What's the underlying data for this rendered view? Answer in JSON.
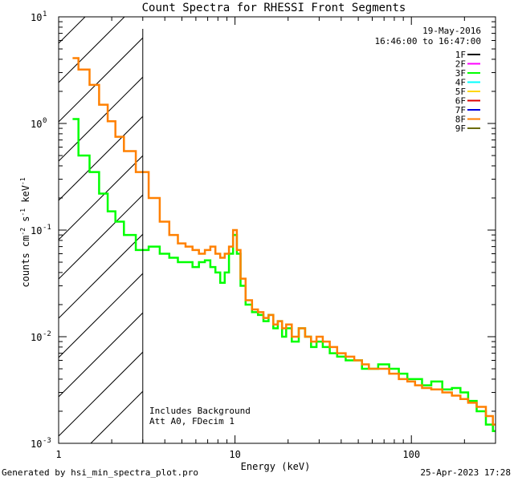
{
  "footer": {
    "left": "Generated by hsi_min_spectra_plot.pro",
    "right": "25-Apr-2023 17:28"
  },
  "chart_data": {
    "type": "line",
    "title": "Count Spectra for RHESSI Front Segments",
    "xlabel": "Energy (keV)",
    "ylabel": "counts cm-2 s-1 keV-1",
    "xscale": "log",
    "yscale": "log",
    "xlim": [
      1,
      300
    ],
    "ylim": [
      0.001,
      10
    ],
    "x_ticks": [
      {
        "value": 1,
        "label": "1"
      },
      {
        "value": 10,
        "label": "10"
      },
      {
        "value": 100,
        "label": "100"
      }
    ],
    "y_ticks": [
      {
        "value": 10,
        "label": "10",
        "exp": "1"
      },
      {
        "value": 1,
        "label": "10",
        "exp": "0"
      },
      {
        "value": 0.1,
        "label": "10",
        "exp": "-1"
      },
      {
        "value": 0.01,
        "label": "10",
        "exp": "-2"
      },
      {
        "value": 0.001,
        "label": "10",
        "exp": "-3"
      }
    ],
    "date": "19-May-2016",
    "time_range": "16:46:00 to 16:47:00",
    "annotations": [
      "Includes Background",
      "Att A0, FDecim 1"
    ],
    "cutoff_energy": 3,
    "legend": [
      {
        "label": "1F",
        "color": "#000000"
      },
      {
        "label": "2F",
        "color": "#ff00ff"
      },
      {
        "label": "3F",
        "color": "#00ff00"
      },
      {
        "label": "4F",
        "color": "#00ffff"
      },
      {
        "label": "5F",
        "color": "#ffd700"
      },
      {
        "label": "6F",
        "color": "#dd0000"
      },
      {
        "label": "7F",
        "color": "#0000dd"
      },
      {
        "label": "8F",
        "color": "#ff8000"
      },
      {
        "label": "9F",
        "color": "#6b6b00"
      }
    ],
    "series": [
      {
        "name": "3F",
        "color": "#00ff00",
        "x": [
          1.2,
          1.4,
          1.6,
          1.8,
          2.0,
          2.2,
          2.5,
          3.0,
          3.5,
          4.0,
          4.5,
          5.0,
          5.5,
          6.0,
          6.5,
          7.0,
          7.5,
          8.0,
          8.5,
          9.0,
          9.5,
          10.0,
          10.5,
          11.0,
          12.0,
          13.0,
          14.0,
          15.0,
          16.0,
          17.0,
          18.0,
          19.0,
          20.0,
          22.0,
          24.0,
          26.0,
          28.0,
          30.0,
          33.0,
          36.0,
          40.0,
          45.0,
          50.0,
          55.0,
          60.0,
          70.0,
          80.0,
          90.0,
          100.0,
          110.0,
          120.0,
          140.0,
          160.0,
          180.0,
          200.0,
          220.0,
          250.0,
          280.0,
          300.0
        ],
        "y": [
          1.1,
          0.5,
          0.35,
          0.22,
          0.15,
          0.12,
          0.09,
          0.065,
          0.07,
          0.06,
          0.055,
          0.05,
          0.05,
          0.045,
          0.05,
          0.052,
          0.045,
          0.04,
          0.032,
          0.04,
          0.06,
          0.09,
          0.06,
          0.03,
          0.02,
          0.017,
          0.016,
          0.014,
          0.016,
          0.012,
          0.014,
          0.01,
          0.012,
          0.009,
          0.012,
          0.01,
          0.008,
          0.009,
          0.008,
          0.007,
          0.0065,
          0.006,
          0.006,
          0.005,
          0.005,
          0.0055,
          0.005,
          0.0045,
          0.004,
          0.004,
          0.0035,
          0.0038,
          0.0032,
          0.0033,
          0.003,
          0.0025,
          0.002,
          0.0015,
          0.0013
        ]
      },
      {
        "name": "8F",
        "color": "#ff8000",
        "x": [
          1.2,
          1.4,
          1.6,
          1.8,
          2.0,
          2.2,
          2.5,
          3.0,
          3.5,
          4.0,
          4.5,
          5.0,
          5.5,
          6.0,
          6.5,
          7.0,
          7.5,
          8.0,
          8.5,
          9.0,
          9.5,
          10.0,
          10.5,
          11.0,
          12.0,
          13.0,
          14.0,
          15.0,
          16.0,
          17.0,
          18.0,
          19.0,
          20.0,
          22.0,
          24.0,
          26.0,
          28.0,
          30.0,
          33.0,
          36.0,
          40.0,
          45.0,
          50.0,
          55.0,
          60.0,
          70.0,
          80.0,
          90.0,
          100.0,
          110.0,
          120.0,
          140.0,
          160.0,
          180.0,
          200.0,
          220.0,
          250.0,
          280.0,
          300.0
        ],
        "y": [
          4.1,
          3.2,
          2.3,
          1.5,
          1.05,
          0.75,
          0.55,
          0.35,
          0.2,
          0.12,
          0.09,
          0.075,
          0.07,
          0.065,
          0.06,
          0.065,
          0.07,
          0.06,
          0.055,
          0.06,
          0.07,
          0.1,
          0.065,
          0.035,
          0.022,
          0.018,
          0.017,
          0.015,
          0.016,
          0.013,
          0.014,
          0.012,
          0.013,
          0.01,
          0.012,
          0.01,
          0.009,
          0.01,
          0.009,
          0.008,
          0.007,
          0.0065,
          0.006,
          0.0055,
          0.005,
          0.005,
          0.0045,
          0.004,
          0.0038,
          0.0035,
          0.0033,
          0.0032,
          0.003,
          0.0028,
          0.0026,
          0.0024,
          0.0022,
          0.0018,
          0.0015
        ]
      }
    ]
  }
}
